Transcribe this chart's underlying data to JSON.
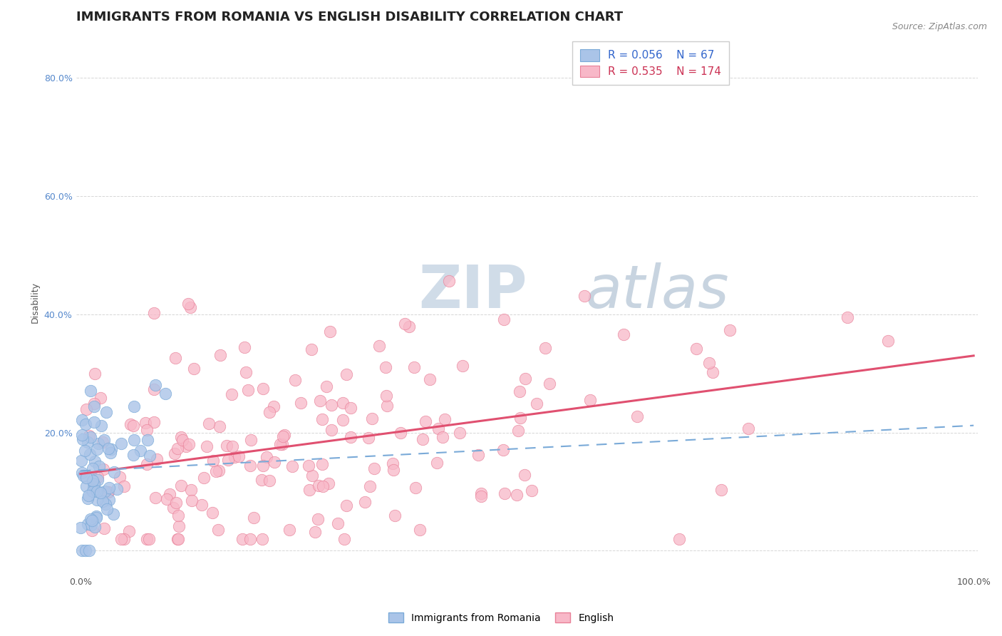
{
  "title": "IMMIGRANTS FROM ROMANIA VS ENGLISH DISABILITY CORRELATION CHART",
  "source_text": "Source: ZipAtlas.com",
  "ylabel": "Disability",
  "xlim": [
    -0.005,
    1.005
  ],
  "ylim": [
    -0.04,
    0.88
  ],
  "blue_R": 0.056,
  "blue_N": 67,
  "pink_R": 0.535,
  "pink_N": 174,
  "blue_color": "#aac4e8",
  "blue_edge": "#7aaad8",
  "blue_line_color": "#7aaad8",
  "pink_color": "#f8b8c8",
  "pink_edge": "#e88098",
  "pink_line_color": "#e05070",
  "watermark_zip": "ZIP",
  "watermark_atlas": "atlas",
  "watermark_color_zip": "#d0dce8",
  "watermark_color_atlas": "#c8d4e0",
  "legend_label_blue": "Immigrants from Romania",
  "legend_label_pink": "English",
  "title_fontsize": 13,
  "axis_label_fontsize": 9,
  "tick_fontsize": 9,
  "background_color": "#ffffff",
  "grid_color": "#cccccc",
  "blue_seed": 7,
  "pink_seed": 42,
  "pink_intercept": 0.13,
  "pink_slope": 0.2,
  "blue_intercept": 0.135,
  "blue_slope": 0.14
}
